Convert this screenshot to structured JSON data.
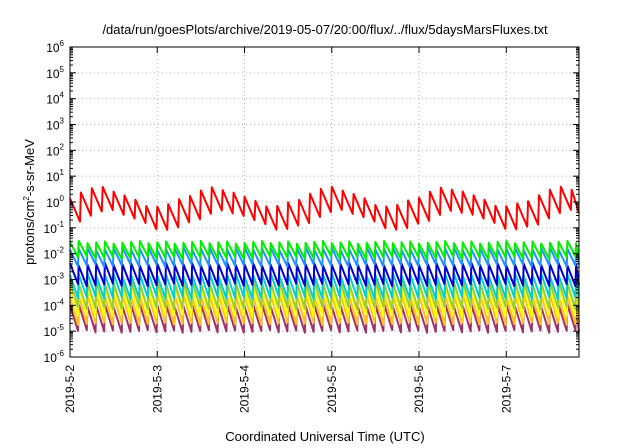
{
  "chart_data": {
    "type": "line",
    "title": "/data/run/goesPlots/archive/2019-05-07/20:00/flux/../flux/5daysMarsFluxes.txt",
    "xlabel": "Coordinated Universal Time (UTC)",
    "ylabel": "protons/cm²-s-sr-MeV",
    "ylabel_parts": {
      "base": "protons/cm",
      "sup": "2",
      "rest": "-s-sr-MeV"
    },
    "yscale": "log",
    "ylim": [
      1e-06,
      1000000.0
    ],
    "y_ticks": [
      {
        "base": "10",
        "exp": "6"
      },
      {
        "base": "10",
        "exp": "5"
      },
      {
        "base": "10",
        "exp": "4"
      },
      {
        "base": "10",
        "exp": "3"
      },
      {
        "base": "10",
        "exp": "2"
      },
      {
        "base": "10",
        "exp": "1"
      },
      {
        "base": "10",
        "exp": "0"
      },
      {
        "base": "10",
        "exp": "-1"
      },
      {
        "base": "10",
        "exp": "-2"
      },
      {
        "base": "10",
        "exp": "-3"
      },
      {
        "base": "10",
        "exp": "-4"
      },
      {
        "base": "10",
        "exp": "-5"
      },
      {
        "base": "10",
        "exp": "-6"
      }
    ],
    "xlim": [
      "2019-05-02",
      "2019-05-07 20:00"
    ],
    "x_ticks": [
      "2019-5-2",
      "2019-5-3",
      "2019-5-4",
      "2019-5-5",
      "2019-5-6",
      "2019-5-7"
    ],
    "grid": true,
    "legend": false,
    "series": [
      {
        "color": "#ff0000",
        "cycles_per_day": 8,
        "log_peak": 0.2,
        "log_trough": -0.7,
        "log_wave_amp": 0.35,
        "log_wave_period_days": 1.33
      },
      {
        "color": "#00ee00",
        "cycles_per_day": 10,
        "log_peak": -1.55,
        "log_trough": -2.15
      },
      {
        "color": "#1e90ff",
        "cycles_per_day": 10,
        "log_peak": -1.8,
        "log_trough": -2.45
      },
      {
        "color": "#0000cd",
        "cycles_per_day": 10,
        "log_peak": -2.4,
        "log_trough": -3.2
      },
      {
        "color": "#00ced1",
        "cycles_per_day": 10,
        "log_peak": -2.8,
        "log_trough": -3.7
      },
      {
        "color": "#9acd32",
        "cycles_per_day": 10,
        "log_peak": -3.1,
        "log_trough": -4.1
      },
      {
        "color": "#ffff00",
        "cycles_per_day": 10,
        "log_peak": -3.3,
        "log_trough": -4.4
      },
      {
        "color": "#ffc020",
        "cycles_per_day": 10,
        "log_peak": -3.6,
        "log_trough": -4.7
      },
      {
        "color": "#a0306a",
        "cycles_per_day": 10,
        "log_peak": -4.0,
        "log_trough": -5.0
      }
    ]
  }
}
